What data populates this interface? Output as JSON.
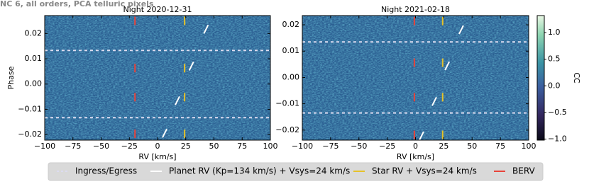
{
  "title": "NC 6, all orders, PCA telluric pixels",
  "legend": [
    {
      "name": "Ingress/Egress",
      "color": "#dcdcf0",
      "style": "dashed"
    },
    {
      "name": "Planet RV (Kp=134 km/s) + Vsys=24 km/s",
      "color": "#ffffff",
      "style": "solid"
    },
    {
      "name": "Star RV + Vsys=24 km/s",
      "color": "#e6c229",
      "style": "solid"
    },
    {
      "name": "BERV",
      "color": "#e8433a",
      "style": "solid"
    }
  ],
  "colorbar": {
    "label": "CC",
    "clim": [
      -1.02,
      1.32
    ],
    "ticks": [
      {
        "value": 1.0,
        "label": "1.0"
      },
      {
        "value": 0.5,
        "label": "0.5"
      },
      {
        "value": 0.0,
        "label": "0.0"
      },
      {
        "value": -0.5,
        "label": "−0.5"
      },
      {
        "value": -1.0,
        "label": "−1.0"
      }
    ]
  },
  "chart_data": [
    {
      "type": "heatmap",
      "title": "Night 2020-12-31",
      "xlabel": "RV [km/s]",
      "ylabel": "Phase",
      "xlim": [
        -100,
        100
      ],
      "ylim": [
        -0.0222,
        0.0271
      ],
      "xticks": [
        {
          "value": -100,
          "label": "−100"
        },
        {
          "value": -75,
          "label": "−75"
        },
        {
          "value": -50,
          "label": "−50"
        },
        {
          "value": -25,
          "label": "−25"
        },
        0,
        25,
        50,
        75,
        100
      ],
      "yticks": [
        {
          "value": 0.02,
          "label": "0.02"
        },
        {
          "value": 0.01,
          "label": "0.01"
        },
        {
          "value": 0.0,
          "label": "0.00"
        },
        {
          "value": -0.01,
          "label": "−0.01"
        },
        {
          "value": -0.02,
          "label": "−0.02"
        }
      ],
      "overlays": {
        "ingress": [
          0.0133,
          -0.0133
        ],
        "planet": {
          "x": [
            43,
            30,
            17.6,
            6.3
          ],
          "y": [
            0.0217,
            0.0071,
            -0.0066,
            -0.0195
          ]
        },
        "star": {
          "x": 24,
          "y": [
            0.025,
            0.0063,
            -0.0052,
            -0.0197
          ]
        },
        "berv": {
          "x": -20,
          "y": [
            0.025,
            0.0063,
            -0.0052,
            -0.0197
          ]
        }
      }
    },
    {
      "type": "heatmap",
      "title": "Night 2021-02-18",
      "xlabel": "RV [km/s]",
      "xlim": [
        -100,
        100
      ],
      "ylim": [
        -0.0238,
        0.0235
      ],
      "xticks": [
        {
          "value": -100,
          "label": "−100"
        },
        {
          "value": -75,
          "label": "−75"
        },
        {
          "value": -50,
          "label": "−50"
        },
        {
          "value": -25,
          "label": "−25"
        },
        0,
        25,
        50,
        75,
        100
      ],
      "yticks": [
        {
          "value": 0.02,
          "label": "0.02"
        },
        {
          "value": 0.01,
          "label": "0.01"
        },
        {
          "value": 0.0,
          "label": "0.00"
        },
        {
          "value": -0.01,
          "label": "−0.01"
        },
        {
          "value": -0.02,
          "label": "−0.02"
        }
      ],
      "overlays": {
        "ingress": [
          0.0135,
          -0.0135
        ],
        "planet": {
          "x": [
            40.4,
            28,
            16.6,
            5.3
          ],
          "y": [
            0.0181,
            0.0044,
            -0.0091,
            -0.0222
          ]
        },
        "star": {
          "x": 24,
          "y": [
            0.0214,
            0.0056,
            -0.0075,
            -0.0218
          ]
        },
        "berv": {
          "x": -1,
          "y": [
            0.0214,
            0.0056,
            -0.0075,
            -0.0218
          ]
        }
      }
    }
  ]
}
